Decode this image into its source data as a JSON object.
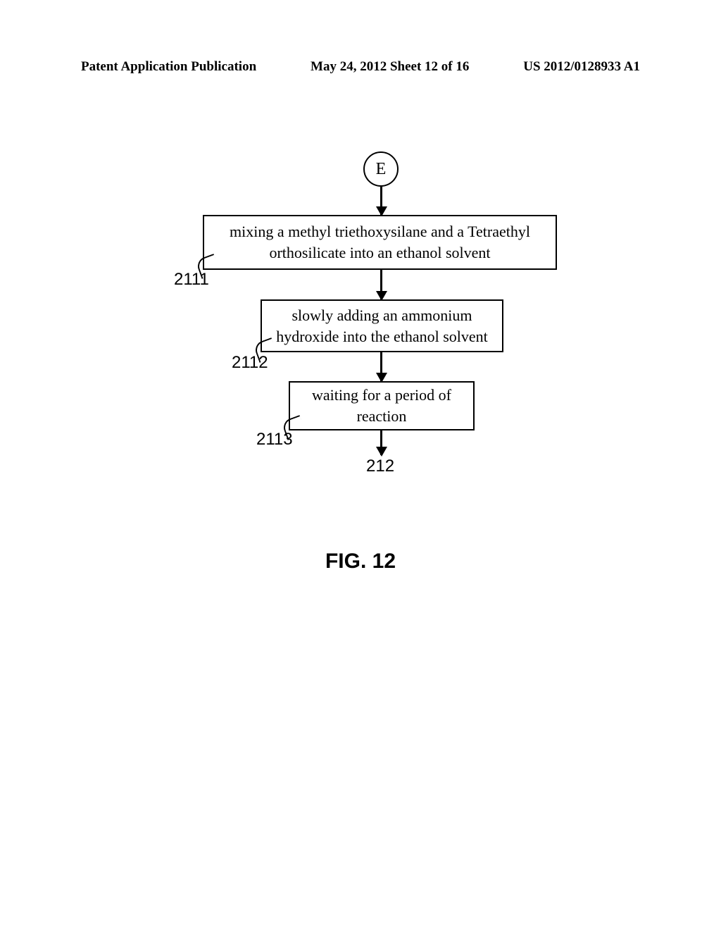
{
  "header": {
    "left": "Patent Application Publication",
    "center": "May 24, 2012  Sheet 12 of 16",
    "right": "US 2012/0128933 A1"
  },
  "flowchart": {
    "type": "flowchart",
    "start_label": "E",
    "nodes": [
      {
        "id": "2111",
        "text": "mixing a methyl triethoxysilane and a Tetraethyl orthosilicate into an ethanol solvent",
        "ref": "2111"
      },
      {
        "id": "2112",
        "text": "slowly adding an ammonium hydroxide into the ethanol solvent",
        "ref": "2112"
      },
      {
        "id": "2113",
        "text": "waiting for a period of reaction",
        "ref": "2113"
      }
    ],
    "end_ref": "212",
    "edges": [
      {
        "from": "E",
        "to": "2111"
      },
      {
        "from": "2111",
        "to": "2112"
      },
      {
        "from": "2112",
        "to": "2113"
      },
      {
        "from": "2113",
        "to": "212"
      }
    ],
    "colors": {
      "background": "#ffffff",
      "stroke": "#000000",
      "text": "#000000"
    },
    "line_width": 2,
    "node_fontsize": 22,
    "ref_fontsize": 24
  },
  "figure_label": "FIG. 12"
}
